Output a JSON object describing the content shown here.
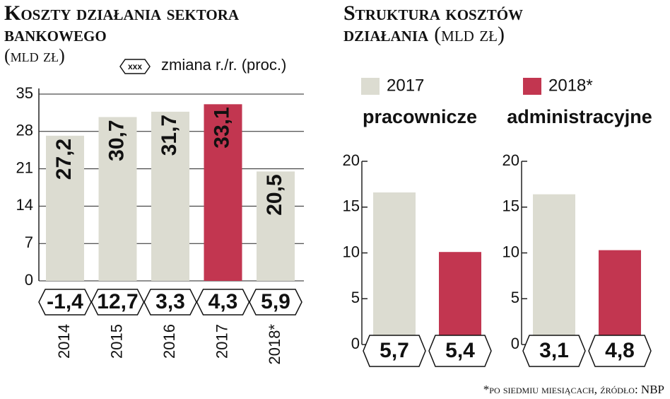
{
  "chart_data": [
    {
      "type": "bar",
      "title": "Koszty działania sektora bankowego",
      "subtitle": "(mld zł)",
      "legend_symbol": "xxx",
      "legend_label": "zmiana r./r. (proc.)",
      "categories": [
        "2014",
        "2015",
        "2016",
        "2017",
        "2018*"
      ],
      "values": [
        27.2,
        30.7,
        31.7,
        33.1,
        20.5
      ],
      "value_labels": [
        "27,2",
        "30,7",
        "31,7",
        "33,1",
        "20,5"
      ],
      "colors": [
        "#dcdcd1",
        "#dcdcd1",
        "#dcdcd1",
        "#c23650",
        "#dcdcd1"
      ],
      "label_colors": [
        "#111",
        "#111",
        "#111",
        "#fff",
        "#111"
      ],
      "changes": [
        -1.4,
        12.7,
        3.3,
        4.3,
        5.9
      ],
      "change_labels": [
        "-1,4",
        "12,7",
        "3,3",
        "4,3",
        "5,9"
      ],
      "ylim": [
        0,
        35
      ],
      "yticks": [
        0,
        7,
        14,
        21,
        28,
        35
      ],
      "grid": true
    },
    {
      "type": "grouped-bar",
      "title": "Struktura kosztów działania",
      "subtitle": "(mld zł)",
      "categories": [
        "pracownicze",
        "administracyjne"
      ],
      "series": [
        {
          "name": "2017",
          "color": "#dcdcd1",
          "values": [
            16.6,
            16.4
          ],
          "changes": [
            5.7,
            3.1
          ],
          "change_labels": [
            "5,7",
            "3,1"
          ]
        },
        {
          "name": "2018*",
          "color": "#c23650",
          "values": [
            10.1,
            10.3
          ],
          "changes": [
            5.4,
            4.8
          ],
          "change_labels": [
            "5,4",
            "4,8"
          ]
        }
      ],
      "ylim": [
        0,
        20
      ],
      "yticks": [
        0,
        5,
        10,
        15,
        20
      ],
      "footnote": "*po siedmiu miesiącach, źródło: NBP"
    }
  ]
}
